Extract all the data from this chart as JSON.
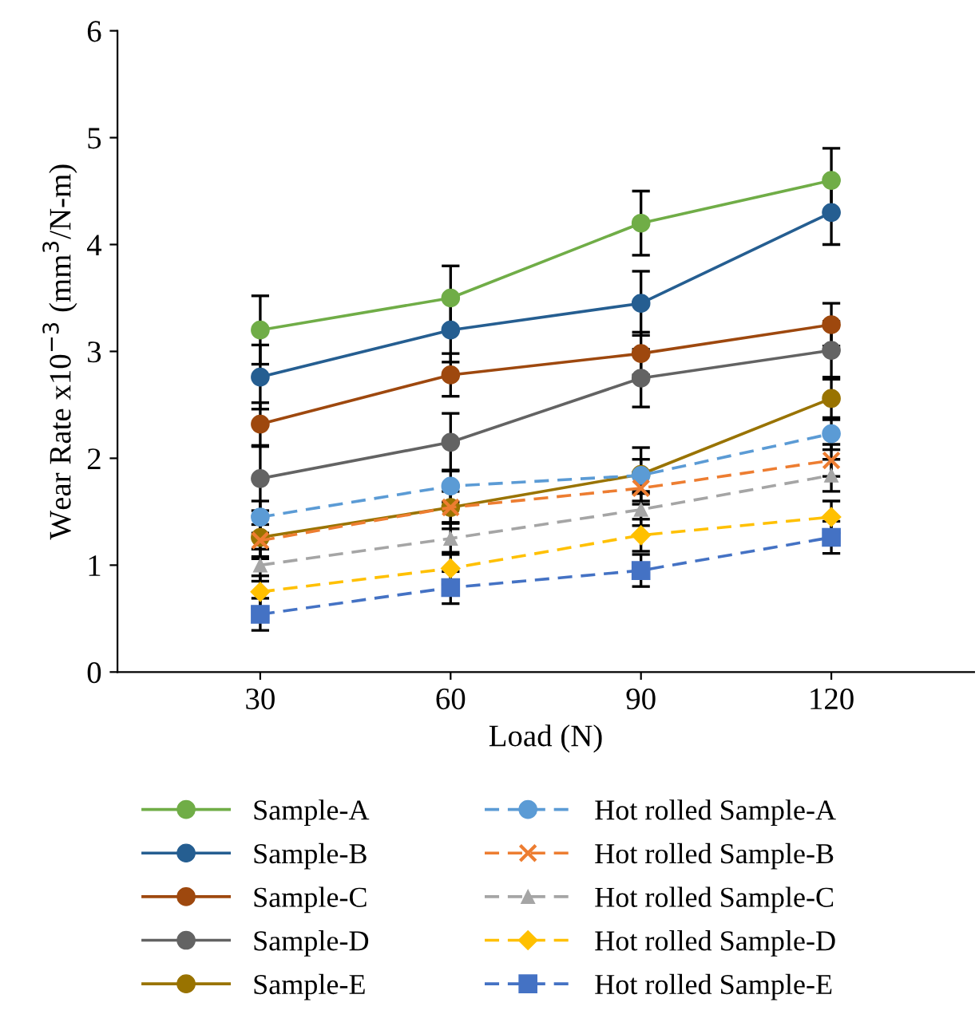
{
  "chart_data": {
    "type": "line",
    "xlabel": "Load (N)",
    "ylabel": "Wear Rate x10$^{−3}$ (mm$^{3}$/N-m)",
    "categories": [
      "30",
      "60",
      "90",
      "120"
    ],
    "ylim": [
      0,
      6
    ],
    "yticks": [
      0,
      1,
      2,
      3,
      4,
      5,
      6
    ],
    "grid": false,
    "legend": "bottom",
    "series": [
      {
        "name": "Sample-A",
        "color": "#70ad47",
        "marker": "circle",
        "line_style": "solid",
        "values": [
          3.2,
          3.5,
          4.2,
          4.6
        ],
        "errors": [
          0.32,
          0.3,
          0.3,
          0.3
        ]
      },
      {
        "name": "Sample-B",
        "color": "#255e91",
        "marker": "circle",
        "line_style": "solid",
        "values": [
          2.76,
          3.2,
          3.45,
          4.3
        ],
        "errors": [
          0.3,
          0.3,
          0.3,
          0.3
        ]
      },
      {
        "name": "Sample-C",
        "color": "#9e480e",
        "marker": "circle",
        "line_style": "solid",
        "values": [
          2.32,
          2.78,
          2.98,
          3.25
        ],
        "errors": [
          0.2,
          0.2,
          0.2,
          0.2
        ]
      },
      {
        "name": "Sample-D",
        "color": "#636363",
        "marker": "circle",
        "line_style": "solid",
        "values": [
          1.81,
          2.15,
          2.75,
          3.01
        ],
        "errors": [
          0.3,
          0.27,
          0.27,
          0.27
        ]
      },
      {
        "name": "Sample-E",
        "color": "#997300",
        "marker": "circle",
        "line_style": "solid",
        "values": [
          1.26,
          1.54,
          1.85,
          2.56
        ],
        "errors": [
          0.2,
          0.2,
          0.25,
          0.2
        ]
      },
      {
        "name": "Hot rolled Sample-A",
        "color": "#5b9bd5",
        "marker": "circle",
        "line_style": "dashed",
        "values": [
          1.45,
          1.74,
          1.84,
          2.23
        ],
        "errors": [
          0.15,
          0.15,
          0.15,
          0.15
        ]
      },
      {
        "name": "Hot rolled Sample-B",
        "color": "#ed7d31",
        "marker": "cross",
        "line_style": "dashed",
        "values": [
          1.23,
          1.54,
          1.72,
          1.98
        ],
        "errors": [
          0.15,
          0.15,
          0.15,
          0.15
        ]
      },
      {
        "name": "Hot rolled Sample-C",
        "color": "#a5a5a5",
        "marker": "triangle",
        "line_style": "dashed",
        "values": [
          1.0,
          1.25,
          1.52,
          1.84
        ],
        "errors": [
          0.15,
          0.15,
          0.15,
          0.15
        ]
      },
      {
        "name": "Hot rolled Sample-D",
        "color": "#ffc000",
        "marker": "diamond",
        "line_style": "dashed",
        "values": [
          0.75,
          0.97,
          1.28,
          1.45
        ],
        "errors": [
          0.15,
          0.15,
          0.15,
          0.15
        ]
      },
      {
        "name": "Hot rolled Sample-E",
        "color": "#4472c4",
        "marker": "square",
        "line_style": "dashed",
        "values": [
          0.54,
          0.79,
          0.95,
          1.26
        ],
        "errors": [
          0.15,
          0.15,
          0.15,
          0.15
        ]
      }
    ]
  }
}
